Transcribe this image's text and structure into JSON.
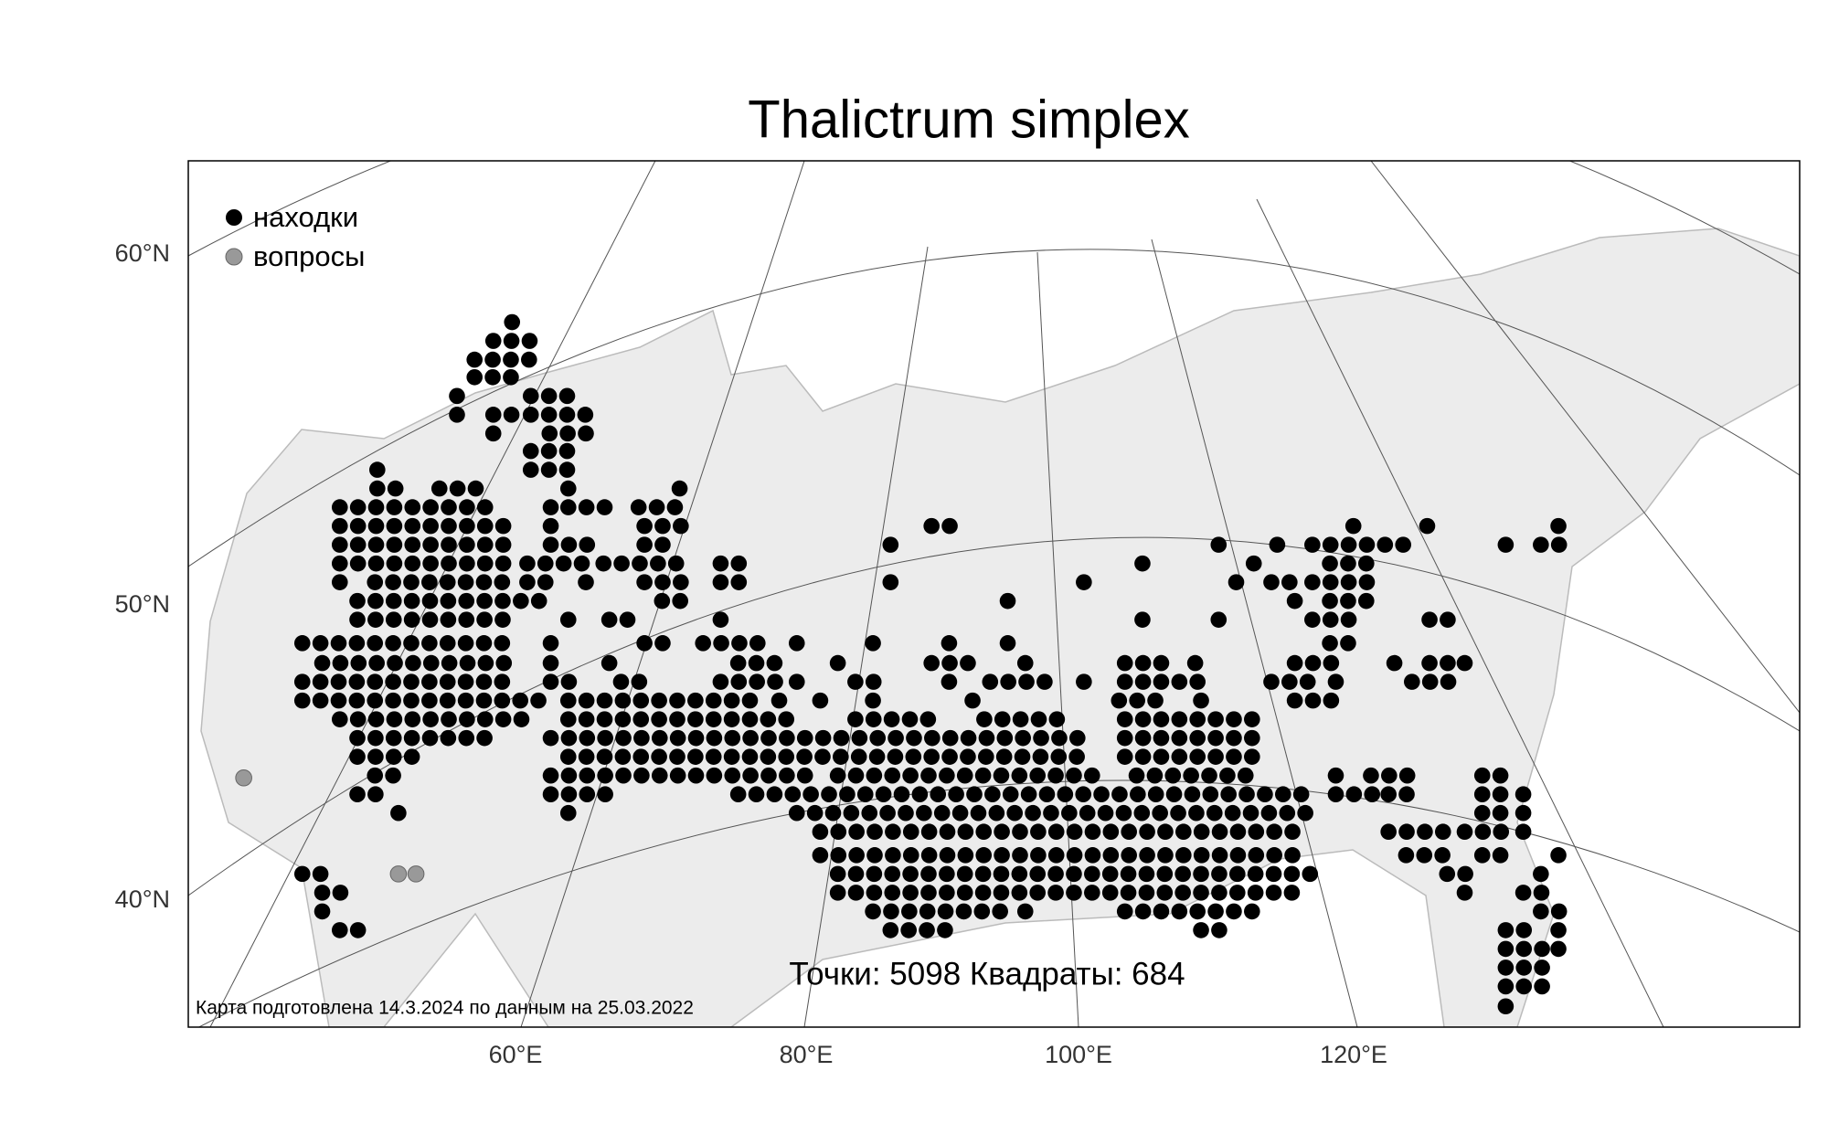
{
  "title": "Thalictrum simplex",
  "legend": {
    "found": "находки",
    "questions": "вопросы"
  },
  "lat_labels": [
    "60°N",
    "50°N",
    "40°N"
  ],
  "lon_labels": [
    "60°E",
    "80°E",
    "100°E",
    "120°E"
  ],
  "stats": "Точки: 5098 Квадраты: 684",
  "footnote": "Карта подготовлена 14.3.2024 по данным на 25.03.2022"
}
